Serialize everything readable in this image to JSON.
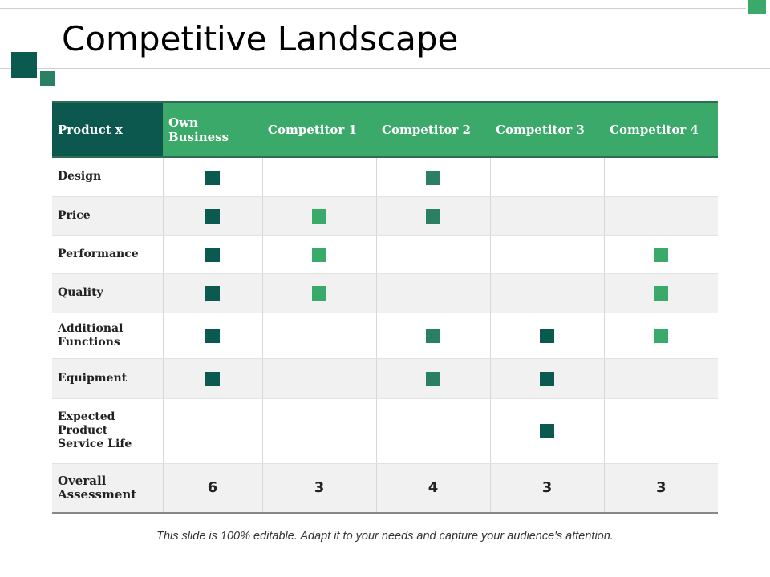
{
  "title": "Competitive Landscape",
  "colors": {
    "dark": "#0b5a50",
    "mid": "#2a8060",
    "light": "#3aaa6a",
    "header": "#3aa96a",
    "header_first": "#0c574e"
  },
  "table": {
    "headers": [
      "Product x",
      "Own Business",
      "Competitor 1",
      "Competitor 2",
      "Competitor 3",
      "Competitor 4"
    ],
    "column_mark_colors": [
      "dark",
      "light",
      "mid",
      "dark",
      "light"
    ],
    "rows": [
      {
        "label": "Design",
        "marks": [
          true,
          false,
          true,
          false,
          false
        ]
      },
      {
        "label": "Price",
        "marks": [
          true,
          true,
          true,
          false,
          false
        ]
      },
      {
        "label": "Performance",
        "marks": [
          true,
          true,
          false,
          false,
          true
        ]
      },
      {
        "label": "Quality",
        "marks": [
          true,
          true,
          false,
          false,
          true
        ]
      },
      {
        "label": "Additional Functions",
        "marks": [
          true,
          false,
          true,
          true,
          true
        ]
      },
      {
        "label": "Equipment",
        "marks": [
          true,
          false,
          true,
          true,
          false
        ]
      },
      {
        "label": "Expected Product Service Life",
        "marks": [
          false,
          false,
          false,
          true,
          false
        ]
      }
    ],
    "total": {
      "label": "Overall Assessment",
      "values": [
        "6",
        "3",
        "4",
        "3",
        "3"
      ]
    }
  },
  "footer": "This slide is 100% editable. Adapt it to your needs and capture your audience's attention."
}
